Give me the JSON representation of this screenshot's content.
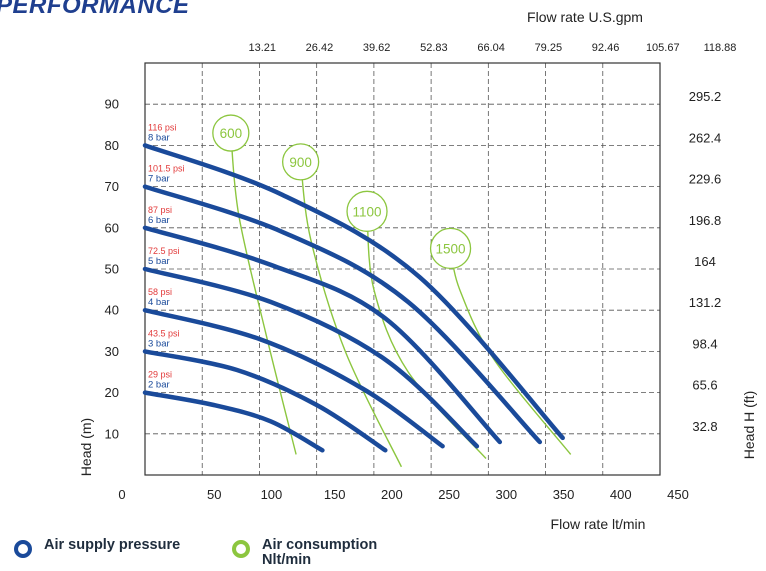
{
  "page_title": "PERFORMANCE",
  "legend": {
    "supply": {
      "label": "Air supply pressure",
      "color": "#1a4a9a"
    },
    "consumption": {
      "label": "Air consumption Nlt/min",
      "color": "#8cc63f"
    }
  },
  "colors": {
    "curve": "#1a4a9a",
    "air": "#8cc63f",
    "psi_label": "#e23a3a",
    "bar_label": "#1a4a9a",
    "grid": "#555555"
  },
  "chart_data": {
    "type": "line",
    "title": "PERFORMANCE",
    "xlabel": "Flow rate  lt/min",
    "x2label": "Flow rate U.S.gpm",
    "ylabel": "Head (m)",
    "y2label": "Head H (ft)",
    "xlim": [
      0,
      450
    ],
    "ylim": [
      0,
      100
    ],
    "x_ticks": [
      0,
      50,
      100,
      150,
      200,
      250,
      300,
      350,
      400,
      450
    ],
    "x_tick_labels": [
      "0",
      "50",
      "100",
      "150",
      "200",
      "250",
      "300",
      "350",
      "400",
      "450"
    ],
    "x_gridlines": [
      50,
      100,
      150,
      200,
      250,
      300,
      350,
      400
    ],
    "y_ticks": [
      10,
      20,
      30,
      40,
      50,
      60,
      70,
      80,
      90
    ],
    "y_tick_labels": [
      "10",
      "20",
      "30",
      "40",
      "50",
      "60",
      "70",
      "80",
      "90"
    ],
    "y_gridlines": [
      10,
      20,
      30,
      40,
      50,
      60,
      70,
      80,
      90
    ],
    "x2_ticks": [
      50,
      100,
      150,
      200,
      250,
      300,
      350,
      400,
      450
    ],
    "x2_tick_labels": [
      "13.21",
      "26.42",
      "39.62",
      "52.83",
      "66.04",
      "79.25",
      "92.46",
      "105.67",
      "118.88"
    ],
    "y2_ticks": [
      10,
      20,
      30,
      40,
      50,
      60,
      70,
      80,
      90
    ],
    "y2_tick_labels": [
      "32.8",
      "65.6",
      "98.4",
      "131.2",
      "164",
      "196.8",
      "229.6",
      "262.4",
      "295.2"
    ],
    "grid": true,
    "series": [
      {
        "name": "2 bar",
        "psi": "29 psi",
        "points": [
          [
            0,
            20
          ],
          [
            60,
            17
          ],
          [
            110,
            13
          ],
          [
            155,
            6
          ]
        ]
      },
      {
        "name": "3 bar",
        "psi": "43.5 psi",
        "points": [
          [
            0,
            30
          ],
          [
            80,
            25.5
          ],
          [
            150,
            17
          ],
          [
            210,
            6
          ]
        ]
      },
      {
        "name": "4 bar",
        "psi": "58 psi",
        "points": [
          [
            0,
            40
          ],
          [
            100,
            33
          ],
          [
            190,
            21
          ],
          [
            260,
            7
          ]
        ]
      },
      {
        "name": "5 bar",
        "psi": "72.5 psi",
        "points": [
          [
            0,
            50
          ],
          [
            110,
            42
          ],
          [
            210,
            28
          ],
          [
            290,
            7
          ]
        ]
      },
      {
        "name": "6 bar",
        "psi": "87 psi",
        "points": [
          [
            0,
            60
          ],
          [
            110,
            51
          ],
          [
            210,
            38
          ],
          [
            310,
            8
          ]
        ]
      },
      {
        "name": "7 bar",
        "psi": "101.5 psi",
        "points": [
          [
            0,
            70
          ],
          [
            120,
            59
          ],
          [
            230,
            42
          ],
          [
            345,
            8
          ]
        ]
      },
      {
        "name": "8 bar",
        "psi": "116 psi",
        "points": [
          [
            0,
            80
          ],
          [
            120,
            68
          ],
          [
            240,
            48
          ],
          [
            365,
            9
          ]
        ]
      }
    ],
    "air_consumption": [
      {
        "label": "600",
        "points": [
          [
            75,
            83
          ],
          [
            82,
            63
          ],
          [
            105,
            35
          ],
          [
            132,
            5
          ]
        ]
      },
      {
        "label": "900",
        "points": [
          [
            136,
            76
          ],
          [
            145,
            57
          ],
          [
            175,
            30
          ],
          [
            224,
            2
          ]
        ]
      },
      {
        "label": "1100",
        "points": [
          [
            194,
            64
          ],
          [
            200,
            45
          ],
          [
            230,
            25
          ],
          [
            298,
            4
          ]
        ]
      },
      {
        "label": "1500",
        "points": [
          [
            267,
            55
          ],
          [
            275,
            45
          ],
          [
            305,
            28
          ],
          [
            372,
            5
          ]
        ]
      }
    ]
  }
}
